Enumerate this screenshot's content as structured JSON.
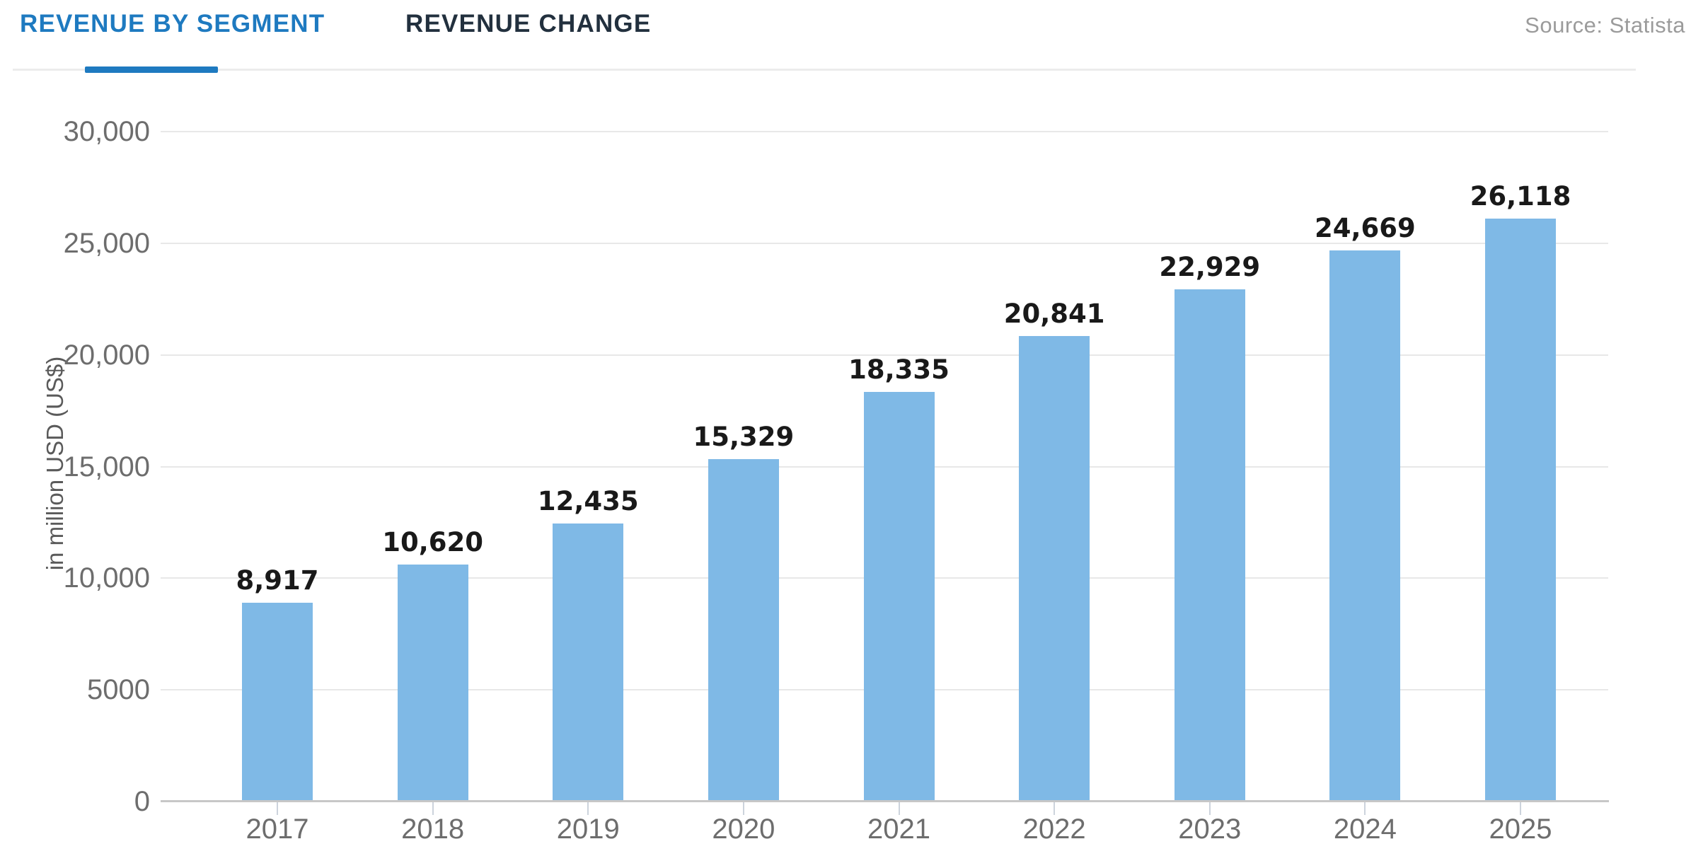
{
  "tabs": [
    {
      "label": "REVENUE BY SEGMENT",
      "active": true
    },
    {
      "label": "REVENUE CHANGE",
      "active": false
    }
  ],
  "source_label": "Source: Statista",
  "colors": {
    "accent": "#1e7ac0",
    "active_tab_text": "#2e7ec3",
    "tab_inactive": "#22303e",
    "bar_color": "#7fb9e6",
    "gridline": "#e8e8e8",
    "axis_line": "#c7c7c7",
    "tick_text": "#6d6d6d",
    "value_label_text": "#191919",
    "source_text": "#9b9b9b"
  },
  "chart_data": {
    "type": "bar",
    "title": "",
    "categories": [
      "2017",
      "2018",
      "2019",
      "2020",
      "2021",
      "2022",
      "2023",
      "2024",
      "2025"
    ],
    "values": [
      8917,
      10620,
      12435,
      15329,
      18335,
      20841,
      22929,
      24669,
      26118
    ],
    "value_labels": [
      "8,917",
      "10,620",
      "12,435",
      "15,329",
      "18,335",
      "20,841",
      "22,929",
      "24,669",
      "26,118"
    ],
    "xlabel": "",
    "ylabel": "in million USD (US$)",
    "ylim": [
      0,
      30000
    ],
    "ytick_values": [
      0,
      5000,
      10000,
      15000,
      20000,
      25000,
      30000
    ],
    "ytick_labels": [
      "0",
      "5000",
      "10,000",
      "15,000",
      "20,000",
      "25,000",
      "30,000"
    ],
    "grid": "horizontal-only",
    "legend": "none"
  }
}
